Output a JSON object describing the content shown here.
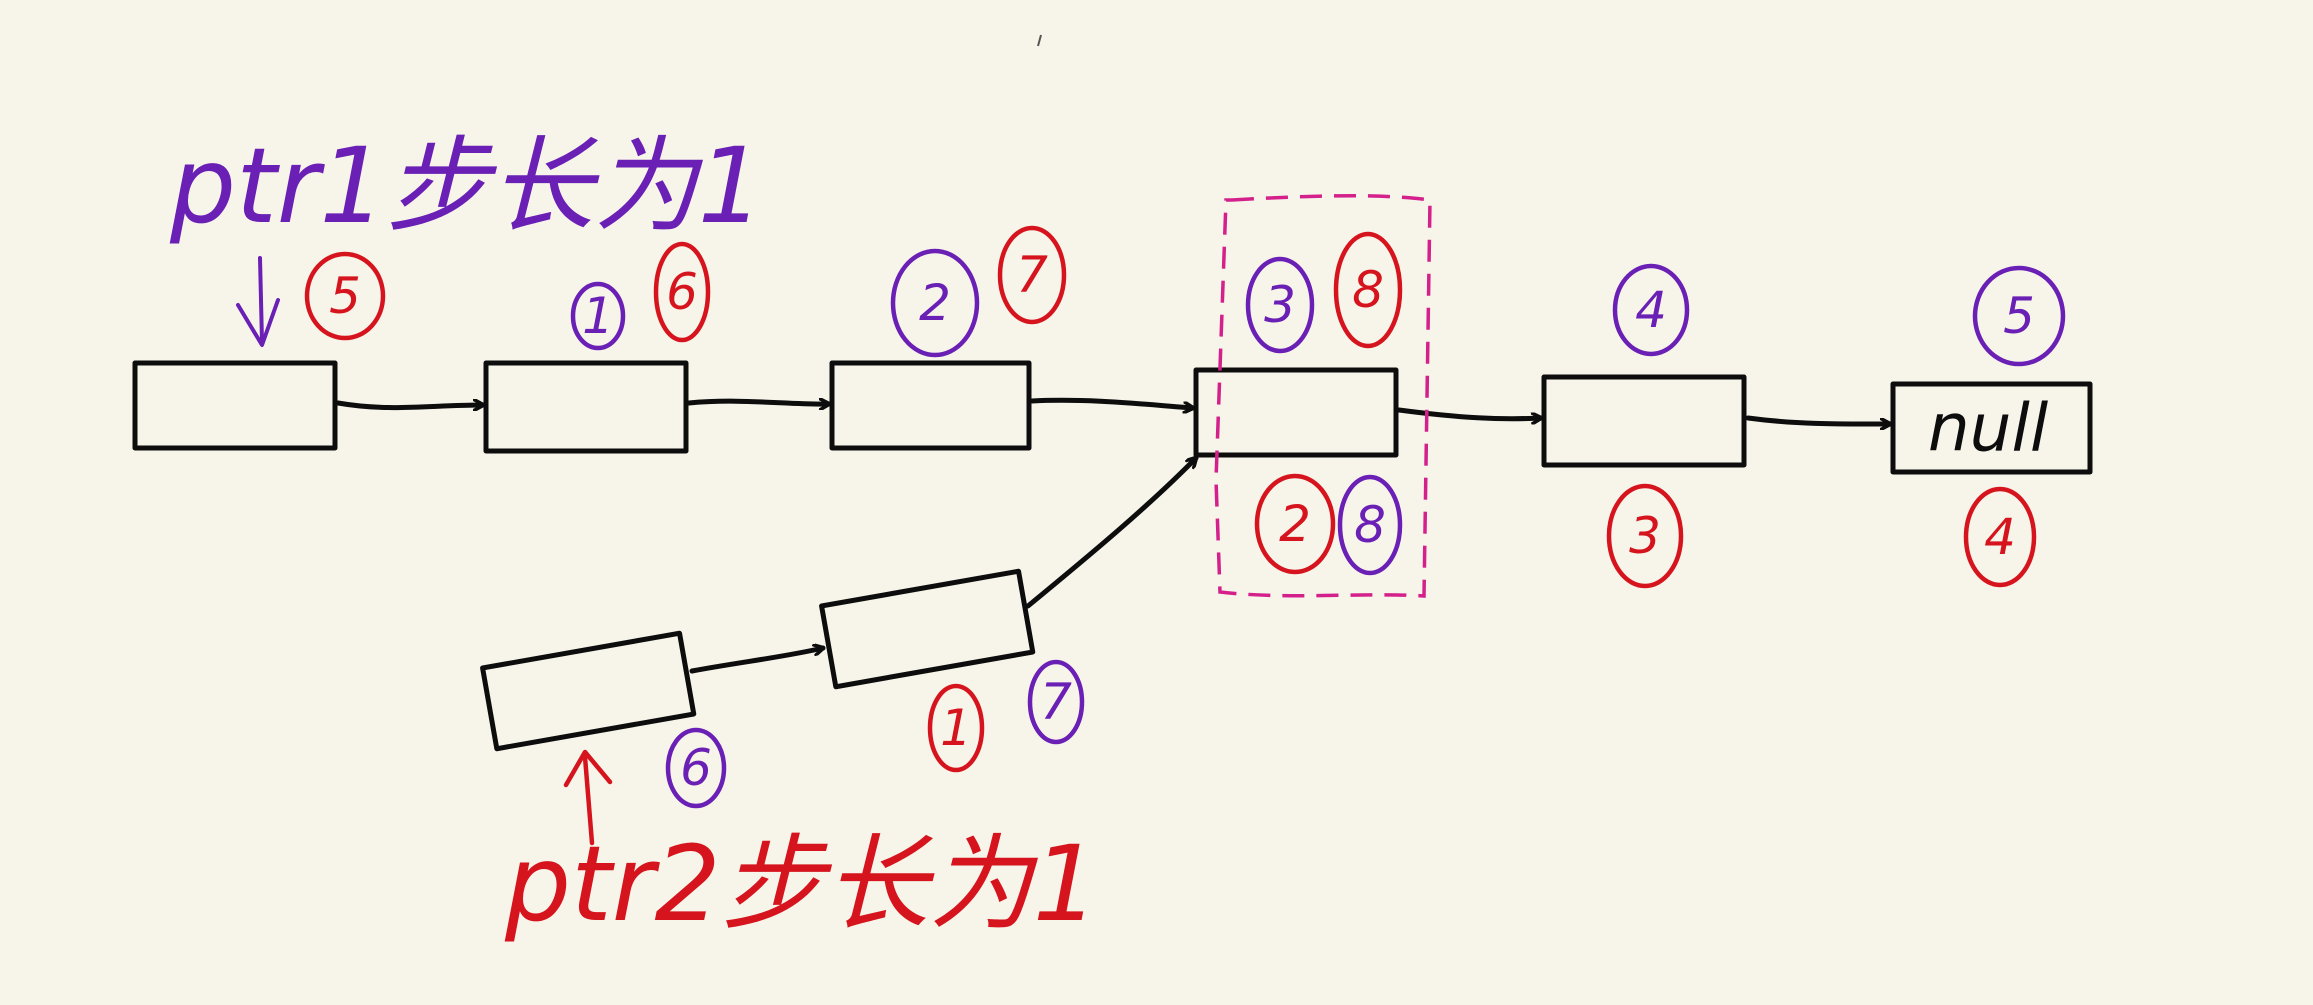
{
  "diagram": {
    "labels": {
      "ptr1": "ptr1步长为1",
      "ptr2": "ptr2步长为1",
      "null_node": "null"
    },
    "colors": {
      "ptr1": "#6a1fb5",
      "ptr2": "#d6141e",
      "intersection_box": "#d4208a",
      "node": "#0d0d0d",
      "background": "#f7f5ea"
    },
    "step_markers": {
      "ptr1": [
        "1",
        "2",
        "3",
        "4",
        "5",
        "6",
        "7",
        "8"
      ],
      "ptr2": [
        "1",
        "2",
        "3",
        "4",
        "5",
        "6",
        "7",
        "8"
      ]
    }
  }
}
